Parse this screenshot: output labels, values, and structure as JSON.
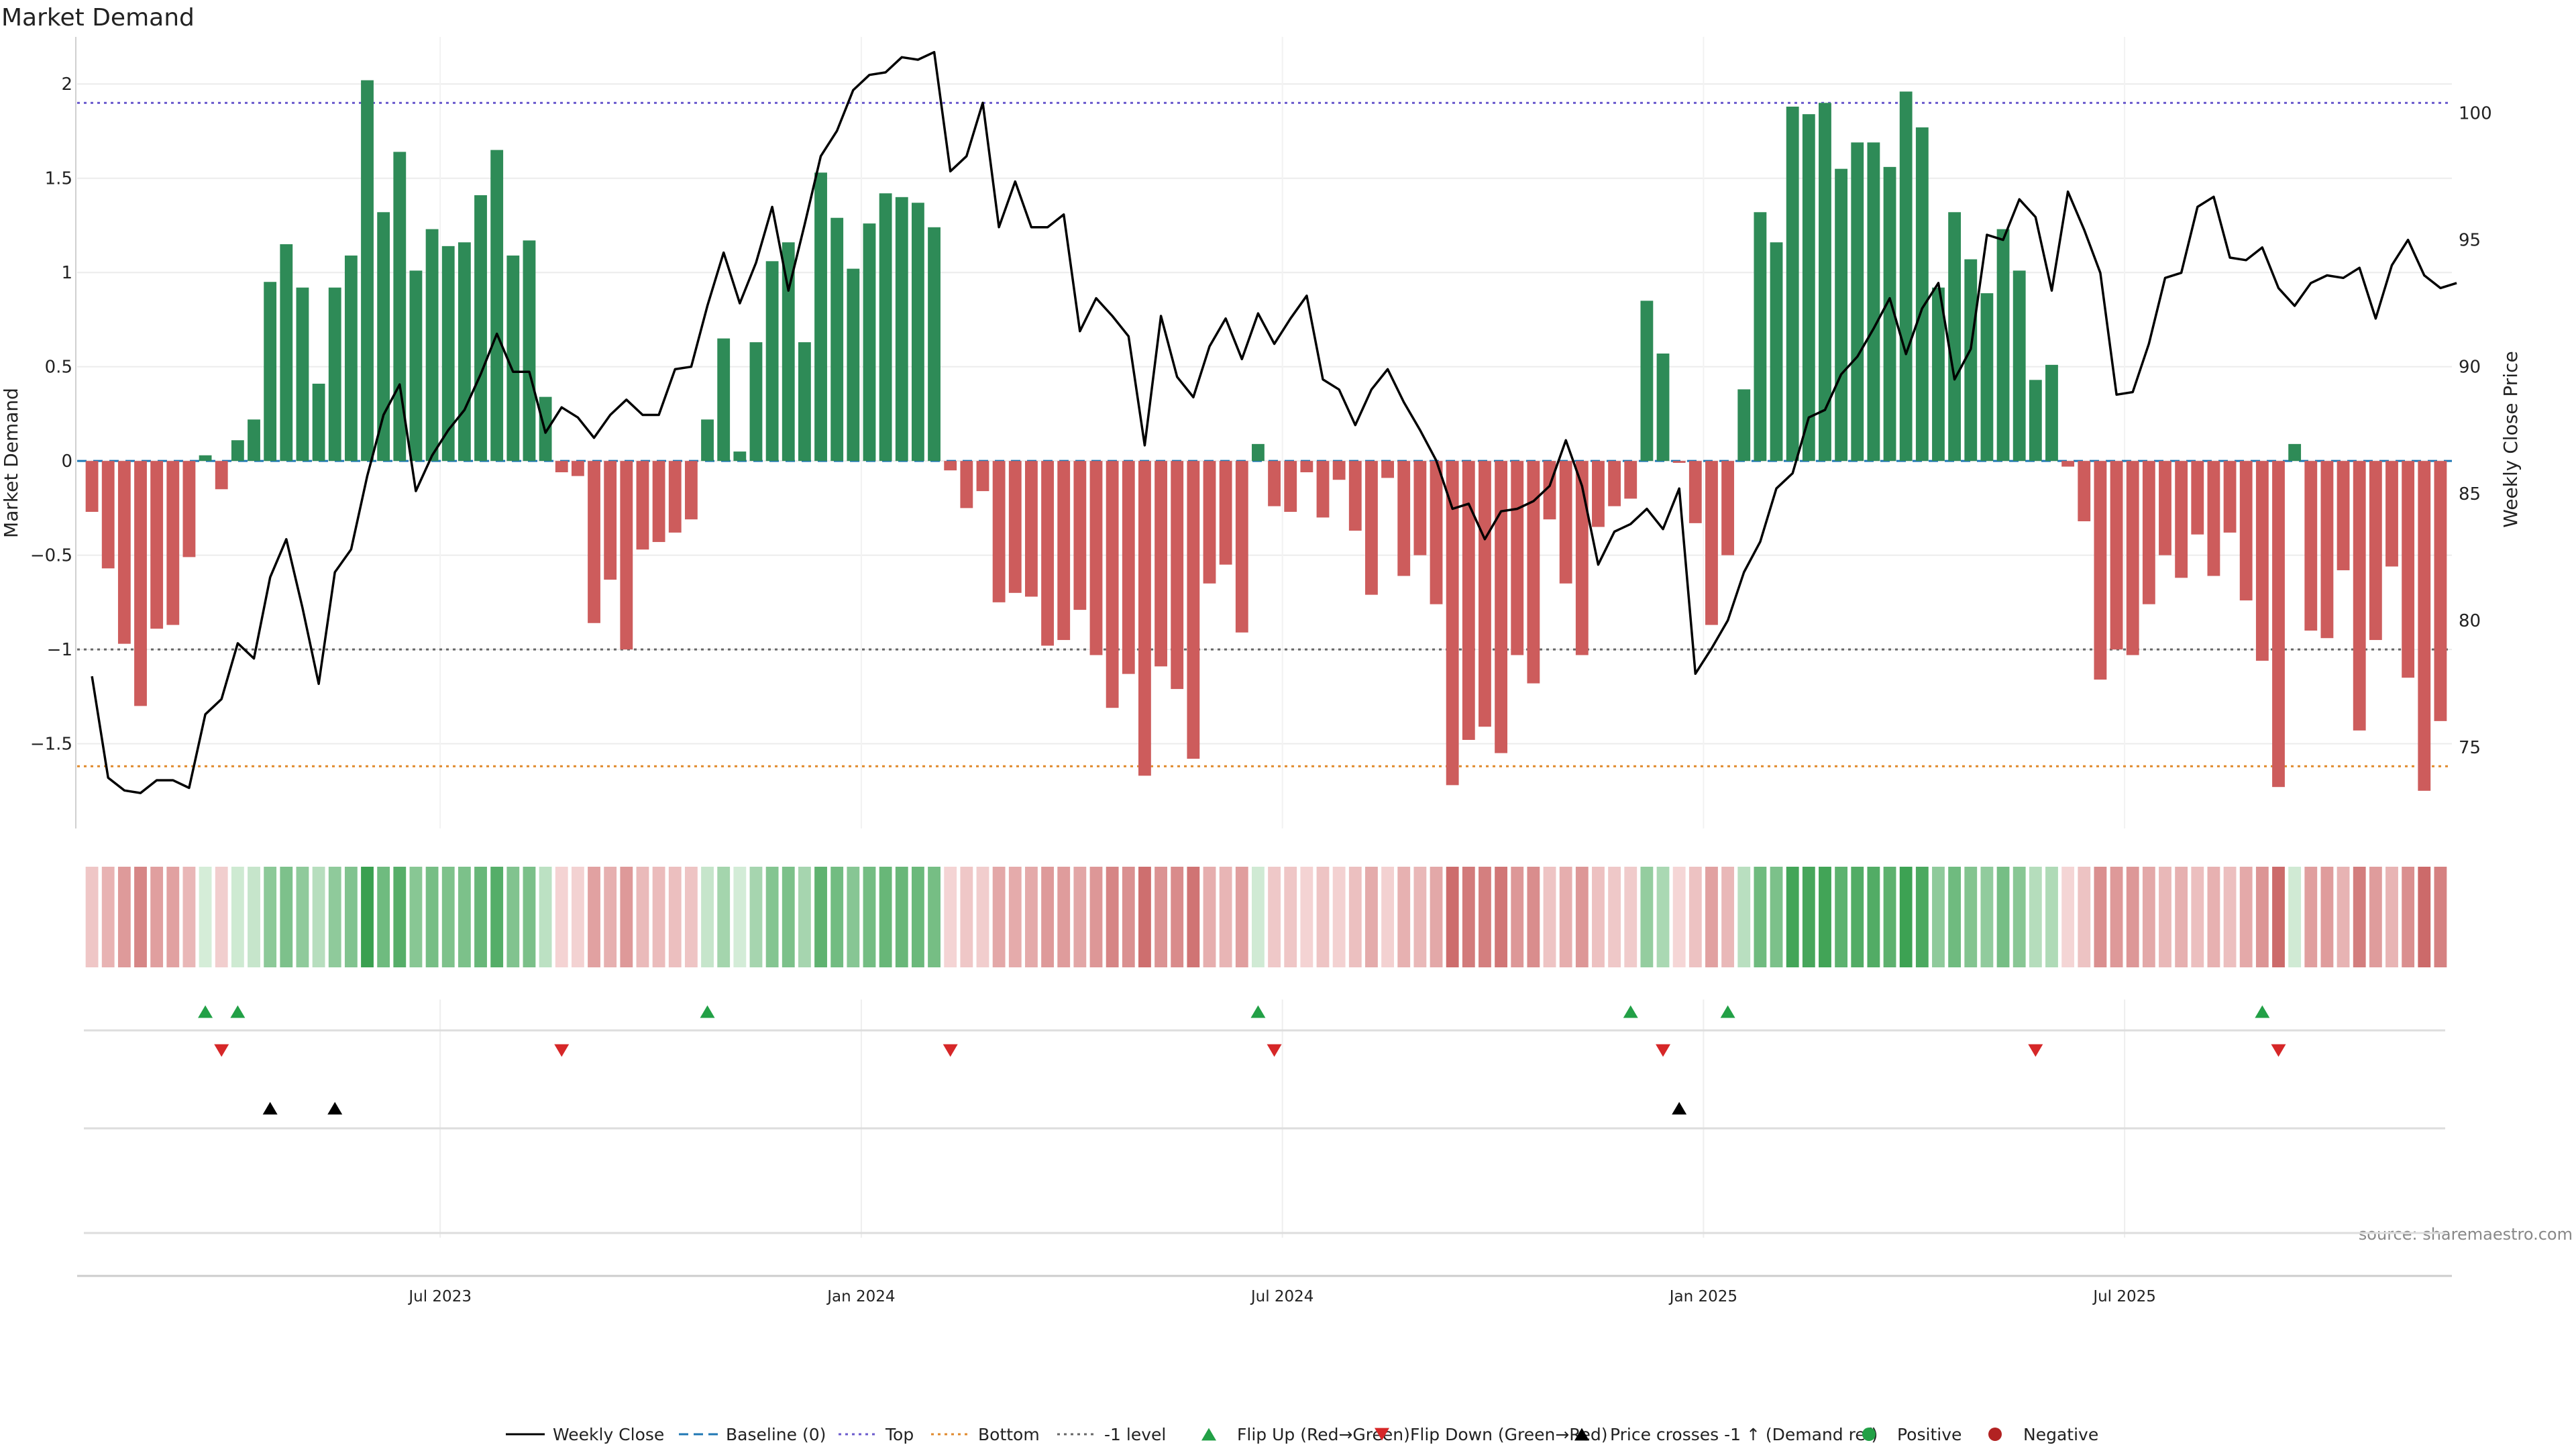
{
  "chart_data": {
    "type": "bar",
    "title": "Market Demand",
    "ylabel": "Market Demand",
    "y2label": "Weekly Close Price",
    "ylim": [
      -1.95,
      2.25
    ],
    "y2lim": [
      71.8,
      103.0
    ],
    "yticks": [
      2,
      1.5,
      1,
      0.5,
      0,
      -0.5,
      -1,
      -1.5
    ],
    "ytick_labels": [
      "2",
      "1.5",
      "1",
      "0.5",
      "0",
      "−0.5",
      "−1",
      "−1.5"
    ],
    "y2ticks": [
      100,
      95,
      90,
      85,
      80,
      75
    ],
    "y2tick_labels": [
      "100",
      "95",
      "90",
      "85",
      "80",
      "75"
    ],
    "xtick_labels": [
      "Jul 2023",
      "Jan 2024",
      "Jul 2024",
      "Jan 2025",
      "Jul 2025"
    ],
    "xtick_index": [
      22,
      48,
      74,
      100,
      126
    ],
    "reference_lines": {
      "baseline": 0,
      "top": 1.9,
      "bottom": -1.62,
      "minus_one": -1
    },
    "demand": [
      -0.27,
      -0.57,
      -0.97,
      -1.3,
      -0.89,
      -0.87,
      -0.51,
      0.03,
      -0.15,
      0.11,
      0.22,
      0.95,
      1.15,
      0.92,
      0.41,
      0.92,
      1.09,
      2.02,
      1.32,
      1.64,
      1.01,
      1.23,
      1.14,
      1.16,
      1.41,
      1.65,
      1.09,
      1.17,
      0.34,
      -0.06,
      -0.08,
      -0.86,
      -0.63,
      -1.0,
      -0.47,
      -0.43,
      -0.38,
      -0.31,
      0.22,
      0.65,
      0.05,
      0.63,
      1.06,
      1.16,
      0.63,
      1.53,
      1.29,
      1.02,
      1.26,
      1.42,
      1.4,
      1.37,
      1.24,
      -0.05,
      -0.25,
      -0.16,
      -0.75,
      -0.7,
      -0.72,
      -0.98,
      -0.95,
      -0.79,
      -1.03,
      -1.31,
      -1.13,
      -1.67,
      -1.09,
      -1.21,
      -1.58,
      -0.65,
      -0.55,
      -0.91,
      0.09,
      -0.24,
      -0.27,
      -0.06,
      -0.3,
      -0.1,
      -0.37,
      -0.71,
      -0.09,
      -0.61,
      -0.5,
      -0.76,
      -1.72,
      -1.48,
      -1.41,
      -1.55,
      -1.03,
      -1.18,
      -0.31,
      -0.65,
      -1.03,
      -0.35,
      -0.24,
      -0.2,
      0.85,
      0.57,
      -0.01,
      -0.33,
      -0.87,
      -0.5,
      0.38,
      1.32,
      1.16,
      1.88,
      1.84,
      1.9,
      1.55,
      1.69,
      1.69,
      1.56,
      1.96,
      1.77,
      0.92,
      1.32,
      1.07,
      0.89,
      1.23,
      1.01,
      0.43,
      0.51,
      -0.03,
      -0.32,
      -1.16,
      -1.0,
      -1.03,
      -0.76,
      -0.5,
      -0.62,
      -0.39,
      -0.61,
      -0.38,
      -0.74,
      -1.06,
      -1.73,
      0.09,
      -0.9,
      -0.94,
      -0.58,
      -1.43,
      -0.95,
      -0.56,
      -1.15,
      -1.75,
      -1.38
    ],
    "weekly_close": [
      77.8,
      73.8,
      73.3,
      73.2,
      73.7,
      73.7,
      73.4,
      76.3,
      76.9,
      79.1,
      78.5,
      81.7,
      83.2,
      80.5,
      77.5,
      81.9,
      82.8,
      85.7,
      88.1,
      89.3,
      85.1,
      86.5,
      87.5,
      88.3,
      89.7,
      91.3,
      89.8,
      89.8,
      87.4,
      88.4,
      88.0,
      87.2,
      88.1,
      88.7,
      88.1,
      88.1,
      89.9,
      90.0,
      92.4,
      94.5,
      92.5,
      94.1,
      96.3,
      93.0,
      95.6,
      98.3,
      99.3,
      100.9,
      101.5,
      101.6,
      102.2,
      102.1,
      102.4,
      97.7,
      98.3,
      100.4,
      95.5,
      97.3,
      95.5,
      95.5,
      96.0,
      91.4,
      92.7,
      92.0,
      91.2,
      86.9,
      92.0,
      89.6,
      88.8,
      90.8,
      91.9,
      90.3,
      92.1,
      90.9,
      91.9,
      92.8,
      89.5,
      89.1,
      87.7,
      89.1,
      89.9,
      88.6,
      87.5,
      86.3,
      84.4,
      84.6,
      83.2,
      84.3,
      84.4,
      84.7,
      85.3,
      87.1,
      85.3,
      82.2,
      83.5,
      83.8,
      84.4,
      83.6,
      85.2,
      77.9,
      78.9,
      80.0,
      81.9,
      83.1,
      85.2,
      85.8,
      88.0,
      88.3,
      89.7,
      90.4,
      91.5,
      92.7,
      90.5,
      92.3,
      93.3,
      89.5,
      90.7,
      95.2,
      95.0,
      96.6,
      95.9,
      93.0,
      96.9,
      95.4,
      93.7,
      88.9,
      89.0,
      90.9,
      93.5,
      93.7,
      96.3,
      96.7,
      94.3,
      94.2,
      94.7,
      93.1,
      92.4,
      93.3,
      93.6,
      93.5,
      93.9,
      91.9,
      94.0,
      95.0,
      93.6,
      93.1,
      93.3
    ],
    "flip_up_index": [
      7,
      9,
      38,
      72,
      95,
      101,
      134
    ],
    "flip_down_index": [
      8,
      29,
      53,
      73,
      97,
      120,
      135
    ],
    "price_cross_index": [
      11,
      15,
      98
    ],
    "annotation": "source: sharemaestro.com",
    "legend_position": "bottom-center",
    "legend": [
      {
        "label": "Weekly Close",
        "symbol": "line-solid",
        "color": "#000000"
      },
      {
        "label": "Baseline (0)",
        "symbol": "line-dashed",
        "color": "#1f77b4"
      },
      {
        "label": "Top",
        "symbol": "line-dotted",
        "color": "#6a5acd"
      },
      {
        "label": "Bottom",
        "symbol": "line-dotted",
        "color": "#e08a2c"
      },
      {
        "label": "-1 level",
        "symbol": "line-dotted",
        "color": "#666666"
      },
      {
        "label": "Flip Up (Red→Green)",
        "symbol": "triangle-up",
        "color": "#22a046"
      },
      {
        "label": "Flip Down (Green→Red)",
        "symbol": "triangle-down",
        "color": "#d62728"
      },
      {
        "label": "Price crosses -1 ↑ (Demand ref)",
        "symbol": "triangle-up",
        "color": "#000000"
      },
      {
        "label": "Positive",
        "symbol": "circle",
        "color": "#22a046"
      },
      {
        "label": "Negative",
        "symbol": "circle",
        "color": "#b22222"
      }
    ],
    "colors": {
      "positive_bar": "#2e8b57",
      "negative_bar": "#cd5c5c",
      "price_line": "#000000",
      "baseline": "#1f77b4",
      "top": "#6a5acd",
      "bottom": "#e08a2c",
      "minus_one": "#666666",
      "flip_up": "#22a046",
      "flip_down": "#d62728"
    }
  }
}
